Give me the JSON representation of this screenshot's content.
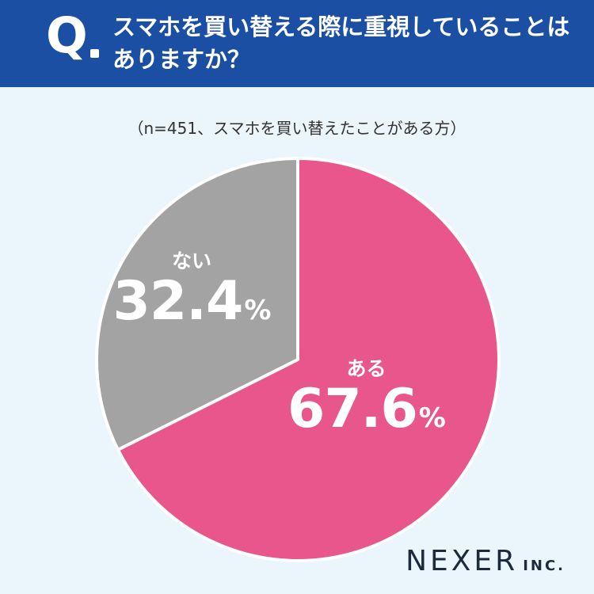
{
  "header": {
    "q_label": "Q",
    "question": "スマホを買い替える際に重視していることはありますか？"
  },
  "sample_note": "（n=451、スマホを買い替えたことがある方）",
  "chart_data": {
    "type": "pie",
    "title": "スマホを買い替える際に重視していることはありますか？",
    "subtitle": "（n=451、スマホを買い替えたことがある方）",
    "unit": "%",
    "start": "12 o'clock, clockwise",
    "slices": [
      {
        "label": "ある",
        "value": 67.6,
        "color": "#e8568c"
      },
      {
        "label": "ない",
        "value": 32.4,
        "color": "#a3a3a3"
      }
    ]
  },
  "logo": {
    "name": "NEXER",
    "suffix": "INC."
  }
}
